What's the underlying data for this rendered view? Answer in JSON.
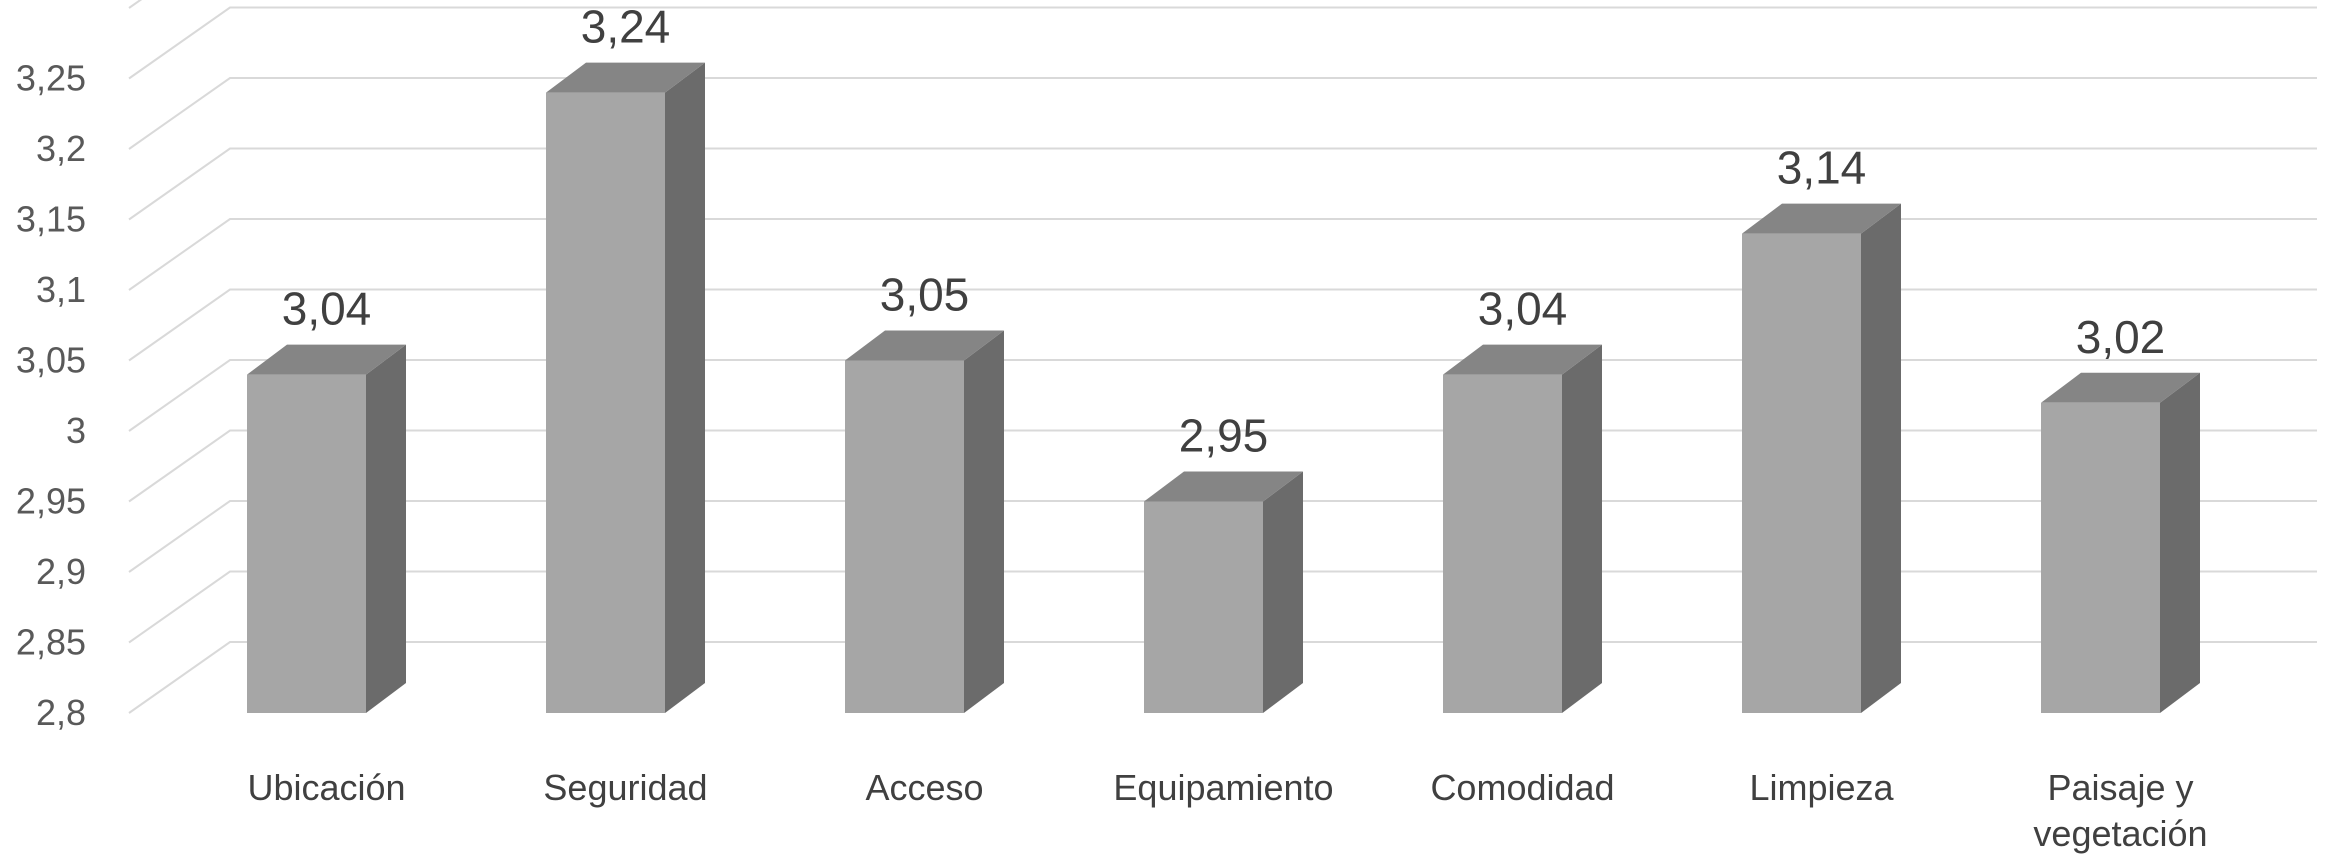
{
  "chart_data": {
    "type": "bar",
    "style": "3d-column",
    "title": "",
    "xlabel": "",
    "ylabel": "",
    "categories": [
      "Ubicación",
      "Seguridad",
      "Acceso",
      "Equipamiento",
      "Comodidad",
      "Limpieza",
      "Paisaje y vegetación"
    ],
    "values": [
      3.04,
      3.24,
      3.05,
      2.95,
      3.04,
      3.14,
      3.02
    ],
    "data_labels": [
      "3,04",
      "3,24",
      "3,05",
      "2,95",
      "3,04",
      "3,14",
      "3,02"
    ],
    "ylim": [
      2.8,
      3.3
    ],
    "ticks": [
      2.8,
      2.85,
      2.9,
      2.95,
      3.0,
      3.05,
      3.1,
      3.15,
      3.2,
      3.25,
      3.3
    ],
    "tick_labels": [
      "2,8",
      "2,85",
      "2,9",
      "2,95",
      "3",
      "3,05",
      "3,1",
      "3,15",
      "3,2",
      "3,25",
      ""
    ],
    "grid": true,
    "legend": "none",
    "colors": {
      "front": "#a6a6a6",
      "side": "#6b6b6b",
      "top": "#858585",
      "grid": "#d9d9d9"
    }
  }
}
